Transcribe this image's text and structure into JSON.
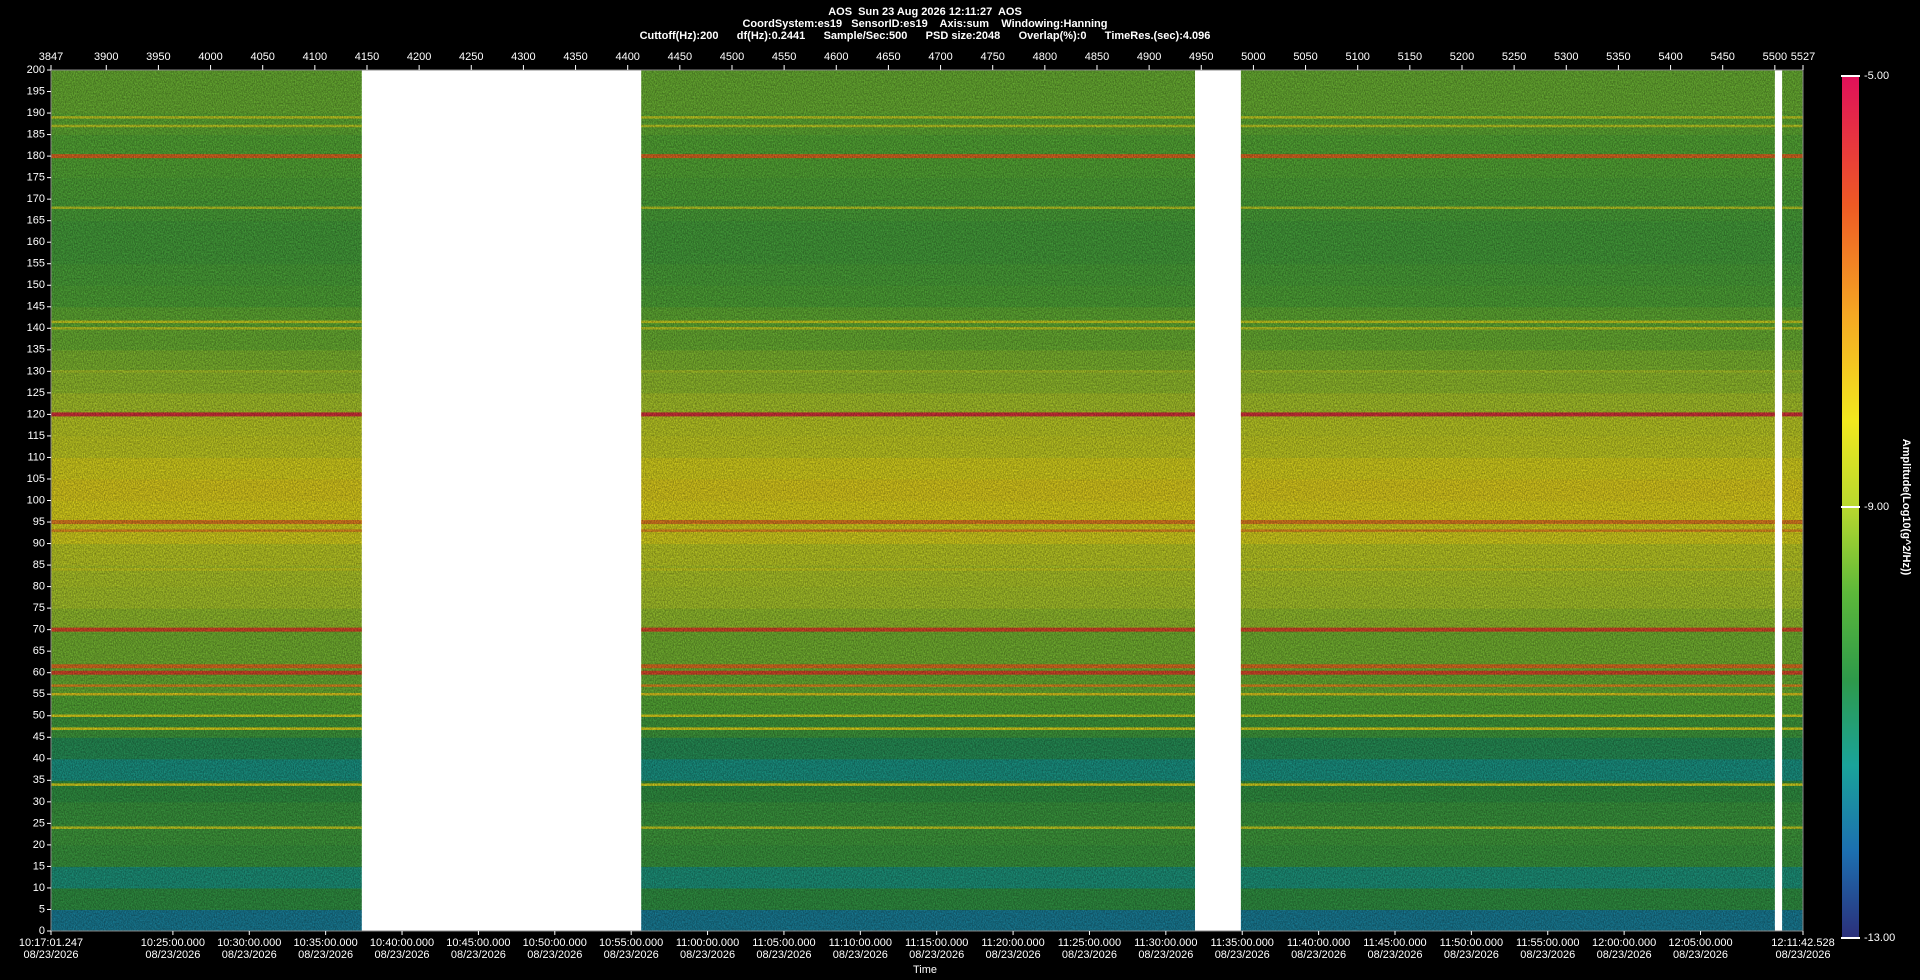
{
  "chart_data": {
    "type": "heatmap",
    "title_lines": [
      "AOS  Sun 23 Aug 2026 12:11:27  AOS",
      "CoordSystem:es19   SensorID:es19    Axis:sum    Windowing:Hanning",
      "Cuttoff(Hz):200      df(Hz):0.2441      Sample/Sec:500      PSD size:2048      Overlap(%):0      TimeRes.(sec):4.096"
    ],
    "xlim": [
      3847,
      5527
    ],
    "xticks": [
      3847,
      3900,
      3950,
      4000,
      4050,
      4100,
      4150,
      4200,
      4250,
      4300,
      4350,
      4400,
      4450,
      4500,
      4550,
      4600,
      4650,
      4700,
      4750,
      4800,
      4850,
      4900,
      4950,
      5000,
      5050,
      5100,
      5150,
      5200,
      5250,
      5300,
      5350,
      5400,
      5450,
      5500,
      5527
    ],
    "segments": [
      [
        3847,
        4145
      ],
      [
        4413,
        4944
      ],
      [
        4988,
        5500
      ],
      [
        5507,
        5527
      ]
    ],
    "ylim": [
      0,
      200
    ],
    "yticks": [
      0,
      5,
      10,
      15,
      20,
      25,
      30,
      35,
      40,
      45,
      50,
      55,
      60,
      65,
      70,
      75,
      80,
      85,
      90,
      95,
      100,
      105,
      110,
      115,
      120,
      125,
      130,
      135,
      140,
      145,
      150,
      155,
      160,
      165,
      170,
      175,
      180,
      185,
      190,
      195,
      200
    ],
    "y_edges": [
      0,
      5,
      10,
      15,
      20,
      25,
      30,
      35,
      40,
      45,
      50,
      55,
      60,
      65,
      70,
      75,
      80,
      85,
      90,
      95,
      100,
      105,
      110,
      115,
      120,
      125,
      130,
      135,
      140,
      145,
      150,
      155,
      160,
      165,
      170,
      175,
      180,
      185,
      190,
      195,
      200
    ],
    "values": [
      -11.8,
      -10.5,
      -11.2,
      -10.3,
      -10.2,
      -10.3,
      -10.5,
      -11.3,
      -10.8,
      -10.2,
      -9.8,
      -9.6,
      -9.5,
      -9.5,
      -9.2,
      -9.0,
      -8.9,
      -8.7,
      -8.3,
      -8.2,
      -8.1,
      -8.3,
      -8.6,
      -8.7,
      -9.0,
      -9.2,
      -9.4,
      -9.6,
      -9.7,
      -9.9,
      -10.0,
      -10.1,
      -10.1,
      -10.0,
      -9.9,
      -9.8,
      -9.8,
      -9.7,
      -9.6,
      -9.6
    ],
    "lines": [
      {
        "freq": 120,
        "value": -5.6
      },
      {
        "freq": 180,
        "value": -6.5
      },
      {
        "freq": 70,
        "value": -6.0
      },
      {
        "freq": 60,
        "value": -6.0
      },
      {
        "freq": 61.5,
        "value": -6.6
      },
      {
        "freq": 95,
        "value": -6.8
      },
      {
        "freq": 93,
        "value": -7.0
      },
      {
        "freq": 57,
        "value": -7.0
      },
      {
        "freq": 55,
        "value": -8.0
      },
      {
        "freq": 50,
        "value": -8.2
      },
      {
        "freq": 47,
        "value": -8.2
      },
      {
        "freq": 34,
        "value": -8.3
      },
      {
        "freq": 24,
        "value": -8.6
      },
      {
        "freq": 141.5,
        "value": -8.5
      },
      {
        "freq": 140,
        "value": -8.7
      },
      {
        "freq": 187,
        "value": -8.7
      },
      {
        "freq": 189,
        "value": -8.6
      },
      {
        "freq": 168,
        "value": -8.8
      },
      {
        "freq": 130,
        "value": -9.0
      },
      {
        "freq": 84,
        "value": -8.5
      }
    ],
    "time_lim": [
      {
        "time": "10:17:01.247",
        "date": "08/23/2026"
      },
      {
        "time": "12:11:42.528",
        "date": "08/23/2026"
      }
    ],
    "time_ticks": [
      {
        "time": "10:25:00.000",
        "date": "08/23/2026"
      },
      {
        "time": "10:30:00.000",
        "date": "08/23/2026"
      },
      {
        "time": "10:35:00.000",
        "date": "08/23/2026"
      },
      {
        "time": "10:40:00.000",
        "date": "08/23/2026"
      },
      {
        "time": "10:45:00.000",
        "date": "08/23/2026"
      },
      {
        "time": "10:50:00.000",
        "date": "08/23/2026"
      },
      {
        "time": "10:55:00.000",
        "date": "08/23/2026"
      },
      {
        "time": "11:00:00.000",
        "date": "08/23/2026"
      },
      {
        "time": "11:05:00.000",
        "date": "08/23/2026"
      },
      {
        "time": "11:10:00.000",
        "date": "08/23/2026"
      },
      {
        "time": "11:15:00.000",
        "date": "08/23/2026"
      },
      {
        "time": "11:20:00.000",
        "date": "08/23/2026"
      },
      {
        "time": "11:25:00.000",
        "date": "08/23/2026"
      },
      {
        "time": "11:30:00.000",
        "date": "08/23/2026"
      },
      {
        "time": "11:35:00.000",
        "date": "08/23/2026"
      },
      {
        "time": "11:40:00.000",
        "date": "08/23/2026"
      },
      {
        "time": "11:45:00.000",
        "date": "08/23/2026"
      },
      {
        "time": "11:50:00.000",
        "date": "08/23/2026"
      },
      {
        "time": "11:55:00.000",
        "date": "08/23/2026"
      },
      {
        "time": "12:00:00.000",
        "date": "08/23/2026"
      },
      {
        "time": "12:05:00.000",
        "date": "08/23/2026"
      }
    ],
    "x_label": "Time",
    "colorbar_label": "Amplitude(Log10(g^2/Hz))",
    "clim": [
      -13,
      -5
    ],
    "cticks": [
      {
        "value": -5,
        "label": "-5.00"
      },
      {
        "value": -9,
        "label": "-9.00"
      },
      {
        "value": -13,
        "label": "-13.00"
      }
    ],
    "colorscale": [
      {
        "value": -13,
        "color": "#2b2f7a"
      },
      {
        "value": -12.2,
        "color": "#1c6fb0"
      },
      {
        "value": -11.4,
        "color": "#1aa39a"
      },
      {
        "value": -10.6,
        "color": "#2e9a4a"
      },
      {
        "value": -9.8,
        "color": "#5cb83a"
      },
      {
        "value": -9.0,
        "color": "#b8d82e"
      },
      {
        "value": -8.2,
        "color": "#f2e81e"
      },
      {
        "value": -7.2,
        "color": "#f5a623"
      },
      {
        "value": -6.2,
        "color": "#ee5a24"
      },
      {
        "value": -5,
        "color": "#e0105a"
      }
    ]
  }
}
